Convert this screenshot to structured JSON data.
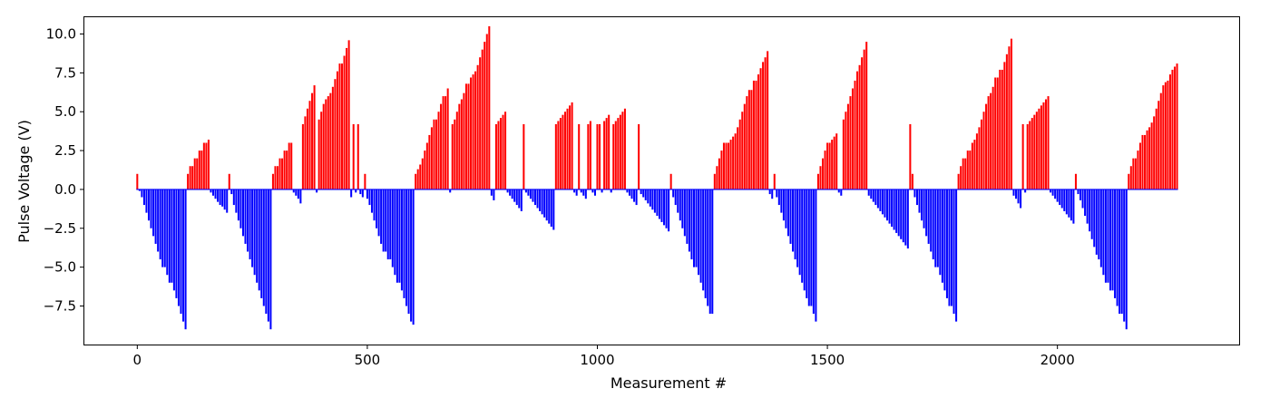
{
  "chart_data": {
    "type": "bar",
    "title": "",
    "xlabel": "Measurement #",
    "ylabel": "Pulse Voltage (V)",
    "xlim": [
      -115,
      2395
    ],
    "ylim": [
      -9.98,
      11.08
    ],
    "xticks": [
      0,
      500,
      1000,
      1500,
      2000
    ],
    "yticks": [
      -7.5,
      -5.0,
      -2.5,
      0.0,
      2.5,
      5.0,
      7.5,
      10.0
    ],
    "xtick_labels": [
      "0",
      "500",
      "1000",
      "1500",
      "2000"
    ],
    "ytick_labels": [
      "−7.5",
      "−5.0",
      "−2.5",
      "0.0",
      "2.5",
      "5.0",
      "7.5",
      "10.0"
    ],
    "positive_color": "#ff0000",
    "negative_color": "#0000ff",
    "grid": false,
    "x_start": 0,
    "x_step": 5,
    "values": [
      1.0,
      -0.1,
      -0.5,
      -1.0,
      -1.5,
      -2.0,
      -2.5,
      -3.0,
      -3.5,
      -4.0,
      -4.5,
      -5.0,
      -5.0,
      -5.5,
      -6.0,
      -6.0,
      -6.5,
      -7.0,
      -7.5,
      -8.0,
      -8.5,
      -9.0,
      1.0,
      1.5,
      1.5,
      2.0,
      2.0,
      2.5,
      2.5,
      3.0,
      3.0,
      3.2,
      -0.2,
      -0.4,
      -0.6,
      -0.8,
      -1.0,
      -1.1,
      -1.3,
      -1.5,
      1.0,
      -0.3,
      -1.0,
      -1.5,
      -2.0,
      -2.5,
      -3.0,
      -3.5,
      -4.0,
      -4.5,
      -5.0,
      -5.5,
      -6.0,
      -6.5,
      -7.0,
      -7.5,
      -8.0,
      -8.5,
      -9.0,
      1.0,
      1.5,
      1.5,
      2.0,
      2.0,
      2.5,
      2.5,
      3.0,
      3.0,
      -0.2,
      -0.4,
      -0.6,
      -0.9,
      4.2,
      4.7,
      5.2,
      5.7,
      6.2,
      6.7,
      -0.2,
      4.5,
      5.0,
      5.5,
      5.8,
      6.0,
      6.2,
      6.6,
      7.1,
      7.6,
      8.1,
      8.1,
      8.6,
      9.1,
      9.6,
      -0.5,
      4.2,
      -0.2,
      4.2,
      -0.3,
      -0.5,
      1.0,
      -0.6,
      -1.0,
      -1.5,
      -2.0,
      -2.5,
      -3.0,
      -3.5,
      -4.0,
      -4.0,
      -4.5,
      -4.5,
      -5.0,
      -5.5,
      -6.0,
      -6.0,
      -6.5,
      -7.0,
      -7.5,
      -8.0,
      -8.5,
      -8.7,
      1.0,
      1.3,
      1.6,
      2.0,
      2.5,
      3.0,
      3.5,
      4.0,
      4.5,
      4.5,
      5.0,
      5.5,
      6.0,
      6.0,
      6.5,
      -0.2,
      4.2,
      4.5,
      5.0,
      5.5,
      5.8,
      6.2,
      6.8,
      6.8,
      7.2,
      7.4,
      7.6,
      8.0,
      8.5,
      9.0,
      9.5,
      10.0,
      10.5,
      -0.4,
      -0.7,
      4.2,
      4.4,
      4.6,
      4.8,
      5.0,
      -0.2,
      -0.4,
      -0.6,
      -0.8,
      -1.0,
      -1.2,
      -1.4,
      4.2,
      -0.2,
      -0.4,
      -0.6,
      -0.8,
      -1.0,
      -1.2,
      -1.4,
      -1.6,
      -1.8,
      -2.0,
      -2.2,
      -2.4,
      -2.6,
      4.2,
      4.4,
      4.6,
      4.8,
      5.0,
      5.2,
      5.4,
      5.6,
      -0.2,
      -0.4,
      4.2,
      -0.2,
      -0.4,
      -0.6,
      4.2,
      4.4,
      -0.2,
      -0.4,
      4.2,
      4.2,
      -0.2,
      4.4,
      4.6,
      4.8,
      -0.2,
      4.2,
      4.4,
      4.6,
      4.8,
      5.0,
      5.2,
      -0.2,
      -0.4,
      -0.6,
      -0.8,
      -1.0,
      4.2,
      -0.3,
      -0.5,
      -0.7,
      -0.9,
      -1.1,
      -1.3,
      -1.5,
      -1.7,
      -1.9,
      -2.1,
      -2.3,
      -2.5,
      -2.7,
      1.0,
      -0.5,
      -1.0,
      -1.5,
      -2.0,
      -2.5,
      -3.0,
      -3.5,
      -4.0,
      -4.5,
      -5.0,
      -5.0,
      -5.5,
      -6.0,
      -6.5,
      -7.0,
      -7.5,
      -8.0,
      -8.0,
      1.0,
      1.5,
      2.0,
      2.5,
      3.0,
      3.0,
      3.0,
      3.2,
      3.4,
      3.6,
      4.0,
      4.5,
      5.0,
      5.5,
      6.0,
      6.4,
      6.4,
      7.0,
      7.0,
      7.4,
      7.8,
      8.2,
      8.5,
      8.9,
      -0.3,
      -0.6,
      1.0,
      -0.5,
      -1.0,
      -1.5,
      -2.0,
      -2.5,
      -3.0,
      -3.5,
      -4.0,
      -4.5,
      -5.0,
      -5.5,
      -6.0,
      -6.5,
      -7.0,
      -7.5,
      -7.5,
      -8.0,
      -8.5,
      1.0,
      1.5,
      2.0,
      2.5,
      3.0,
      3.0,
      3.2,
      3.4,
      3.6,
      -0.2,
      -0.4,
      4.5,
      5.0,
      5.5,
      6.0,
      6.5,
      7.0,
      7.6,
      8.0,
      8.5,
      9.0,
      9.5,
      -0.4,
      -0.6,
      -0.8,
      -1.0,
      -1.2,
      -1.4,
      -1.6,
      -1.8,
      -2.0,
      -2.2,
      -2.4,
      -2.6,
      -2.8,
      -3.0,
      -3.2,
      -3.4,
      -3.6,
      -3.8,
      4.2,
      1.0,
      -0.5,
      -1.0,
      -1.5,
      -2.0,
      -2.5,
      -3.0,
      -3.5,
      -4.0,
      -4.5,
      -5.0,
      -5.0,
      -5.5,
      -6.0,
      -6.5,
      -7.0,
      -7.5,
      -7.5,
      -8.0,
      -8.5,
      1.0,
      1.5,
      2.0,
      2.0,
      2.5,
      2.5,
      3.0,
      3.2,
      3.6,
      4.0,
      4.5,
      5.0,
      5.5,
      6.0,
      6.2,
      6.6,
      7.2,
      7.2,
      7.7,
      7.7,
      8.2,
      8.7,
      9.2,
      9.7,
      -0.4,
      -0.6,
      -0.9,
      -1.2,
      4.2,
      -0.2,
      4.2,
      4.4,
      4.6,
      4.8,
      5.0,
      5.2,
      5.4,
      5.6,
      5.8,
      6.0,
      -0.2,
      -0.4,
      -0.6,
      -0.8,
      -1.0,
      -1.2,
      -1.4,
      -1.6,
      -1.8,
      -2.0,
      -2.2,
      1.0,
      -0.3,
      -0.7,
      -1.2,
      -1.7,
      -2.2,
      -2.7,
      -3.2,
      -3.7,
      -4.2,
      -4.5,
      -5.0,
      -5.5,
      -6.0,
      -6.0,
      -6.5,
      -6.5,
      -7.0,
      -7.5,
      -8.0,
      -8.0,
      -8.5,
      -9.0,
      1.0,
      1.5,
      2.0,
      2.0,
      2.5,
      3.0,
      3.5,
      3.5,
      3.8,
      4.0,
      4.3,
      4.7,
      5.2,
      5.7,
      6.2,
      6.7,
      6.9,
      7.0,
      7.4,
      7.7,
      7.9,
      8.1
    ]
  }
}
